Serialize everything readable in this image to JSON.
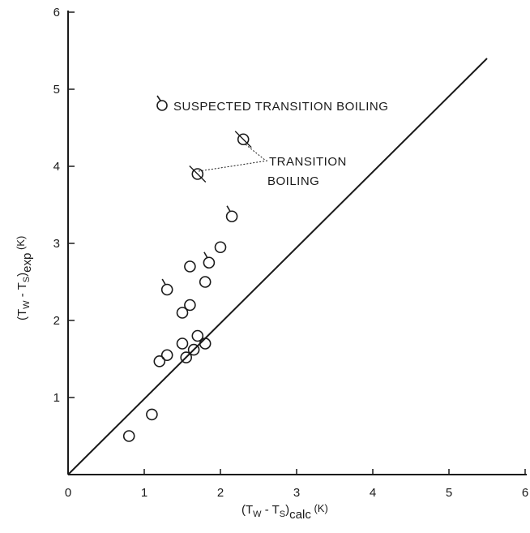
{
  "chart_data": {
    "type": "scatter",
    "title": "",
    "xlabel": {
      "base": "(T",
      "sub1": "W",
      "mid": " - T",
      "sub2": "S",
      "close": ")",
      "sub3": "calc",
      "unit": " (K)"
    },
    "ylabel": {
      "base": "(T",
      "sub1": "W",
      "mid": " - T",
      "sub2": "S",
      "close": ")",
      "sub3": "exp",
      "unit": " (K)"
    },
    "xlim": [
      0,
      6
    ],
    "ylim": [
      0,
      6
    ],
    "x_ticks": [
      "0",
      "1",
      "2",
      "3",
      "4",
      "5",
      "6"
    ],
    "y_ticks": [
      "1",
      "2",
      "3",
      "4",
      "5",
      "6"
    ],
    "reference_line": {
      "x": [
        0,
        5.5
      ],
      "y": [
        0,
        5.4
      ]
    },
    "series": [
      {
        "marker": "open-circle",
        "points": [
          {
            "x": 0.8,
            "y": 0.5
          },
          {
            "x": 1.1,
            "y": 0.78
          },
          {
            "x": 1.2,
            "y": 1.47
          },
          {
            "x": 1.3,
            "y": 1.55
          },
          {
            "x": 1.5,
            "y": 1.7
          },
          {
            "x": 1.55,
            "y": 1.52
          },
          {
            "x": 1.65,
            "y": 1.62
          },
          {
            "x": 1.7,
            "y": 1.8
          },
          {
            "x": 1.8,
            "y": 1.7
          },
          {
            "x": 1.5,
            "y": 2.1
          },
          {
            "x": 1.6,
            "y": 2.2
          },
          {
            "x": 1.8,
            "y": 2.5
          },
          {
            "x": 2.0,
            "y": 2.95
          },
          {
            "x": 1.6,
            "y": 2.7
          }
        ]
      },
      {
        "name": "SUSPECTED TRANSITION BOILING",
        "marker": "flagged-circle",
        "points": [
          {
            "x": 1.3,
            "y": 2.4
          },
          {
            "x": 1.85,
            "y": 2.75
          },
          {
            "x": 2.15,
            "y": 3.35
          }
        ]
      },
      {
        "name": "TRANSITION BOILING",
        "marker": "slashed-circle",
        "points": [
          {
            "x": 1.7,
            "y": 3.9
          },
          {
            "x": 2.3,
            "y": 4.35
          }
        ]
      }
    ],
    "legend": {
      "label": "SUSPECTED TRANSITION BOILING",
      "placement": "top-left"
    },
    "annotation": {
      "lines": [
        "TRANSITION",
        "BOILING"
      ]
    }
  }
}
